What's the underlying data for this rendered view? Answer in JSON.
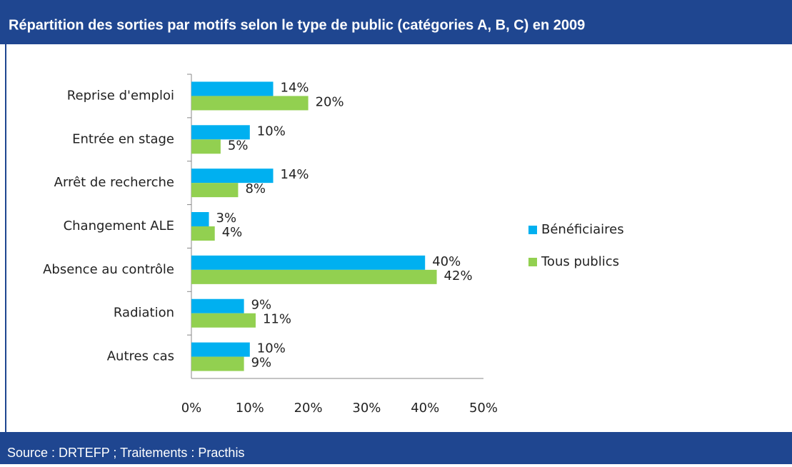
{
  "chart_data": {
    "type": "hbar",
    "title": "Répartition des sorties par motifs selon le type de public (catégories A, B, C) en 2009",
    "source": "Source : DRTEFP ; Traitements : Practhis",
    "categories": [
      "Reprise d'emploi",
      "Entrée en stage",
      "Arrêt de recherche",
      "Changement ALE",
      "Absence au contrôle",
      "Radiation",
      "Autres cas"
    ],
    "series": [
      {
        "name": "Bénéficiaires",
        "color": "#00b0f0",
        "values": [
          14,
          10,
          14,
          3,
          40,
          9,
          10
        ],
        "value_labels": [
          "14%",
          "10%",
          "14%",
          "3%",
          "40%",
          "9%",
          "10%"
        ]
      },
      {
        "name": "Tous publics",
        "color": "#92d050",
        "values": [
          20,
          5,
          8,
          4,
          42,
          11,
          9
        ],
        "value_labels": [
          "20%",
          "5%",
          "8%",
          "4%",
          "42%",
          "11%",
          "9%"
        ]
      }
    ],
    "xlim": [
      0,
      50
    ],
    "xticks": [
      {
        "value": 0,
        "label": "0%"
      },
      {
        "value": 10,
        "label": "10%"
      },
      {
        "value": 20,
        "label": "20%"
      },
      {
        "value": 30,
        "label": "30%"
      },
      {
        "value": 40,
        "label": "40%"
      },
      {
        "value": 50,
        "label": "50%"
      }
    ],
    "legend": "right"
  }
}
